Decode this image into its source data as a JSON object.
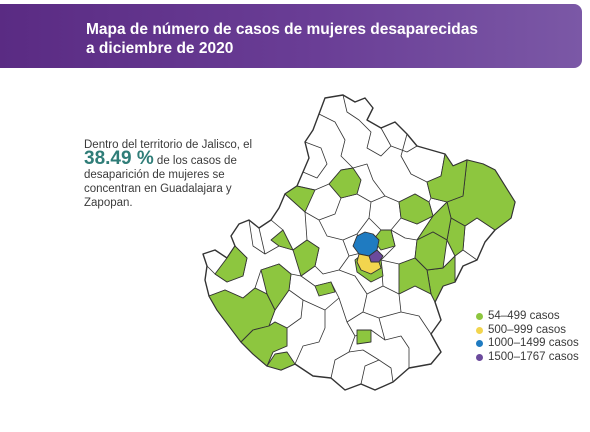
{
  "header": {
    "title_line1": "Mapa de número de casos de mujeres desaparecidas",
    "title_line2": "a diciembre de 2020"
  },
  "callout": {
    "line1": "Dentro del territorio de Jalisco, el",
    "percent": "38.49 %",
    "after_percent": " de los casos de",
    "line3": "desaparición de mujeres se",
    "line4": "concentran en Guadalajara y",
    "line5": "Zapopan."
  },
  "legend": [
    {
      "label": "54–499 casos",
      "color": "#8dc63f"
    },
    {
      "label": "500–999 casos",
      "color": "#f2d54e"
    },
    {
      "label": "1000–1499 casos",
      "color": "#1f7bc1"
    },
    {
      "label": "1500–1767 casos",
      "color": "#6b4a9c"
    }
  ],
  "map": {
    "region": "Jalisco",
    "colors": {
      "outline": "#333333",
      "no_data": "#ffffff",
      "green": "#8dc63f",
      "yellow": "#f2d54e",
      "blue": "#1f7bc1",
      "purple": "#6b4a9c"
    }
  }
}
